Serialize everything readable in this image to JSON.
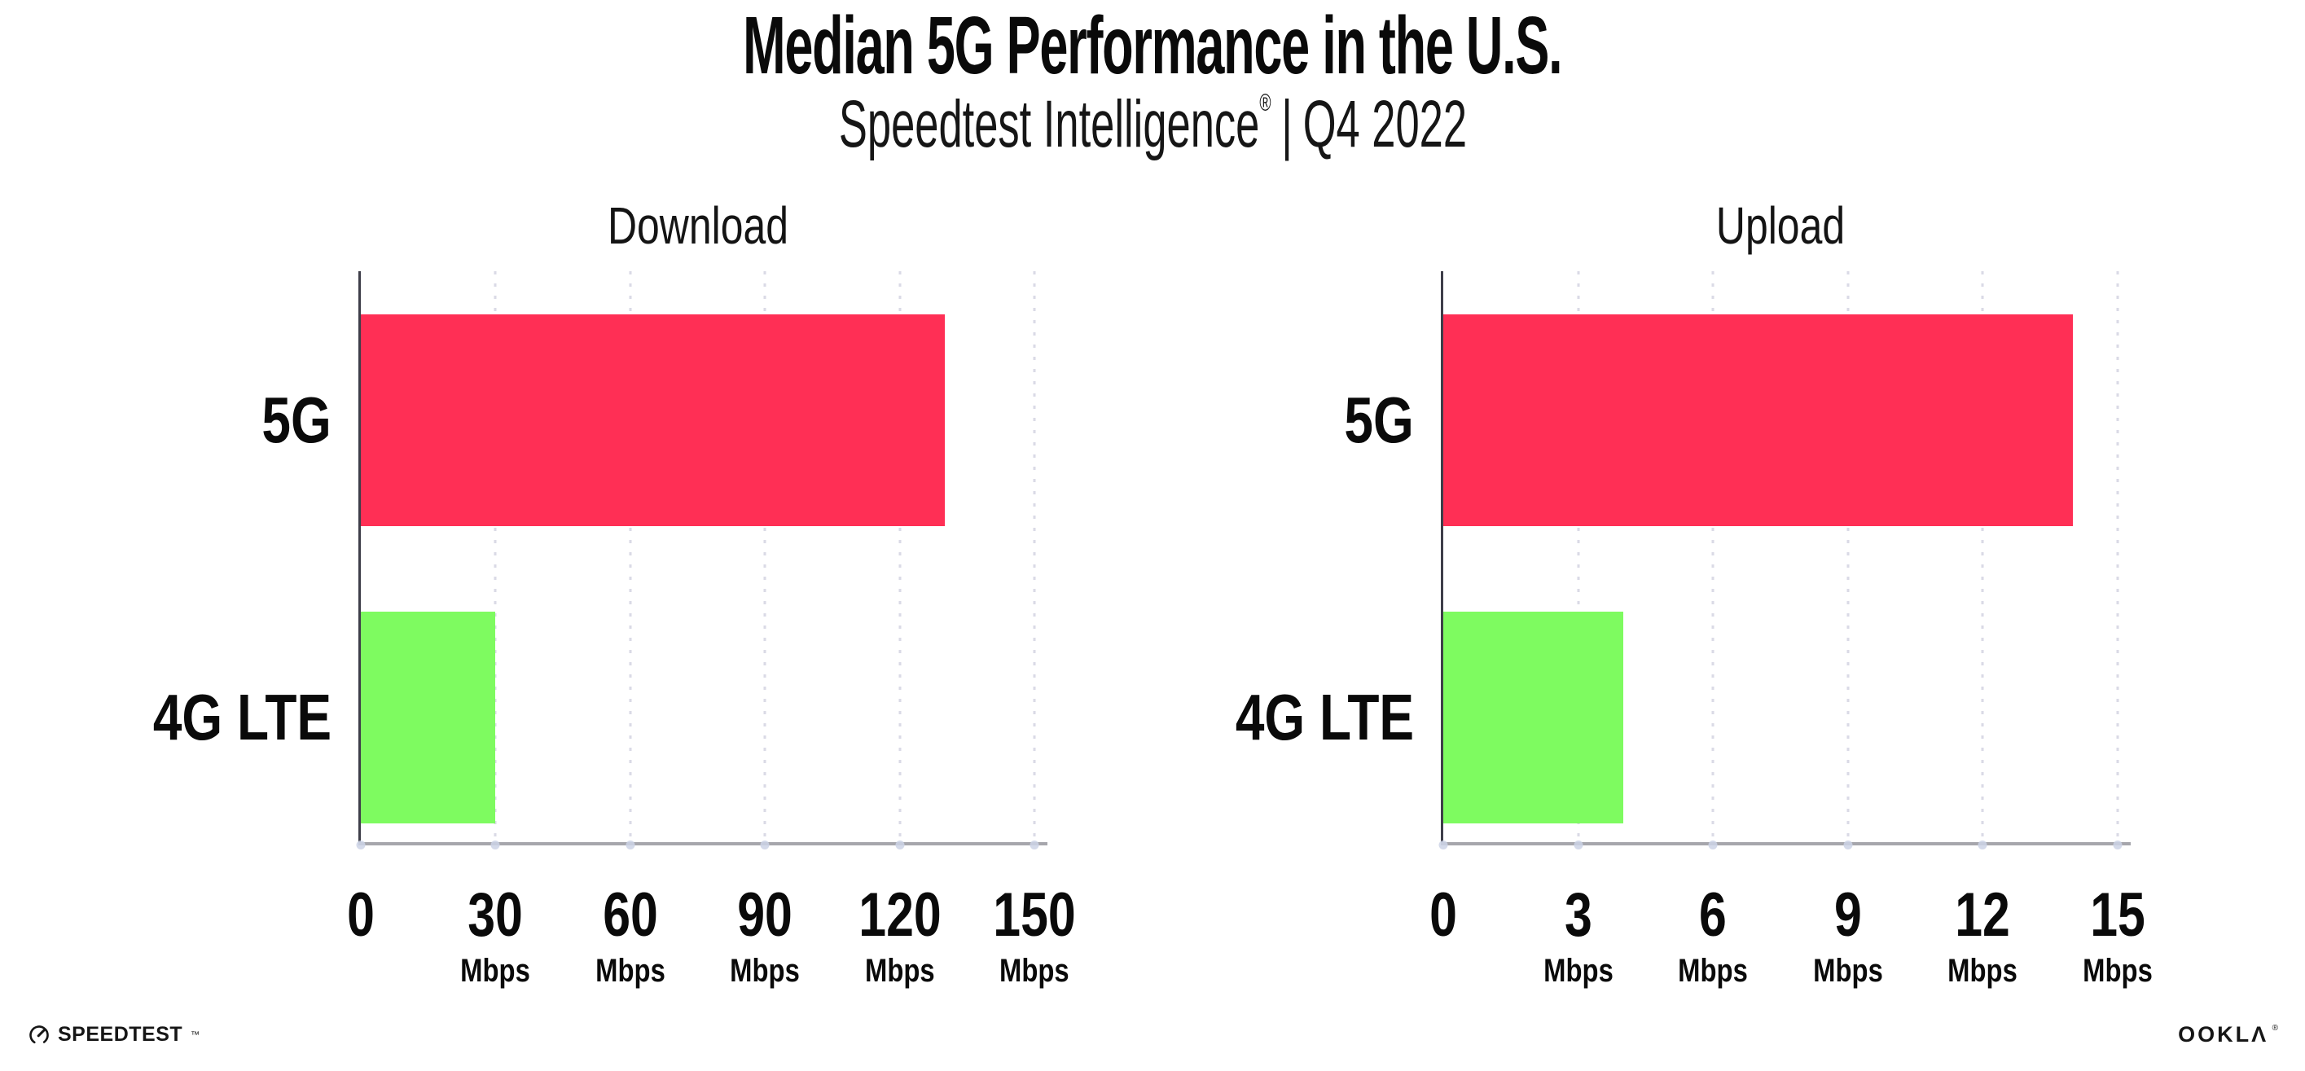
{
  "header": {
    "title": "Median 5G Performance in the U.S.",
    "subtitle": {
      "brand": "Speedtest Intelligence",
      "registered": "®",
      "separator": "|",
      "period": "Q4 2022"
    }
  },
  "chart_data": [
    {
      "type": "bar",
      "orientation": "horizontal",
      "title": "Download",
      "categories": [
        "5G",
        "4G LTE"
      ],
      "values": [
        130,
        30
      ],
      "unit": "Mbps",
      "xlabel": "",
      "ylabel": "",
      "xlim": [
        0,
        150
      ],
      "xticks": [
        0,
        30,
        60,
        90,
        120,
        150
      ],
      "grid": "dotted-vertical",
      "legend": "none",
      "bar_colors": [
        "#ff2f55",
        "#7efb60"
      ]
    },
    {
      "type": "bar",
      "orientation": "horizontal",
      "title": "Upload",
      "categories": [
        "5G",
        "4G LTE"
      ],
      "values": [
        14,
        4
      ],
      "unit": "Mbps",
      "xlabel": "",
      "ylabel": "",
      "xlim": [
        0,
        15
      ],
      "xticks": [
        0,
        3,
        6,
        9,
        12,
        15
      ],
      "grid": "dotted-vertical",
      "legend": "none",
      "bar_colors": [
        "#ff2f55",
        "#7efb60"
      ]
    }
  ],
  "footer": {
    "speedtest": {
      "label": "SPEEDTEST",
      "trademark": "™",
      "icon": "speedometer-icon"
    },
    "ookla": {
      "label": "OOKLA",
      "registered": "®"
    }
  },
  "colors": {
    "bar_5g": "#ff2f55",
    "bar_4g_lte": "#7efb60",
    "grid_dot": "#dadae6",
    "axis_left": "#3e3e49",
    "axis_bottom": "#a6a6ac",
    "tick_dot": "#ccd3e6",
    "text": "#0d0d0d",
    "background": "#ffffff"
  }
}
